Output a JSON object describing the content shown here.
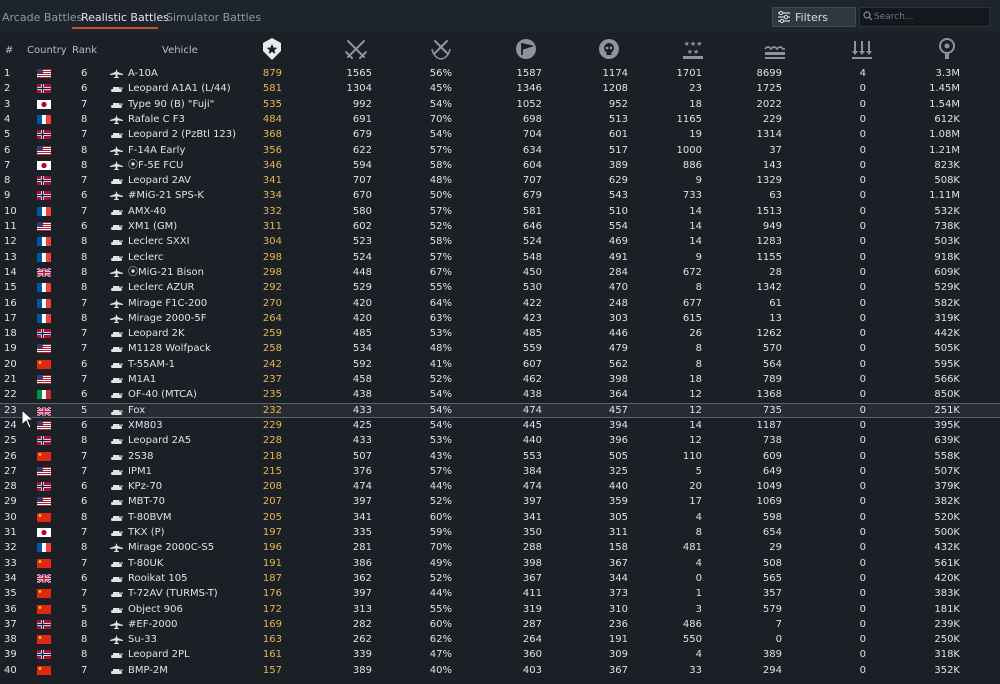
{
  "tabs": [
    {
      "label": "Arcade Battles",
      "active": false
    },
    {
      "label": "Realistic Battles",
      "active": true
    },
    {
      "label": "Simulator Battles",
      "active": false
    }
  ],
  "filters": {
    "label": "Filters",
    "icon": "sliders-icon"
  },
  "search": {
    "placeholder": "Search...",
    "value": ""
  },
  "columns": {
    "num": "#",
    "country": "Country",
    "rank": "Rank",
    "vehicle": "Vehicle",
    "icons": [
      "star-shield-icon",
      "crossed-swords-icon",
      "crossed-swords-laurel-icon",
      "flag-icon",
      "skull-icon",
      "air-kills-icon",
      "ground-kills-icon",
      "naval-kills-icon",
      "research-points-icon"
    ]
  },
  "colors": {
    "accent": "#c8502c",
    "score": "#e6b84e",
    "background": "#1b2026"
  },
  "rows": [
    {
      "n": "1",
      "country": "usa",
      "rank": "6",
      "type": "jet",
      "name": "A-10A",
      "score": "879",
      "played": "1565",
      "wr": "56%",
      "exp": "1587",
      "kills": "1174",
      "air": "1701",
      "ground": "8699",
      "naval": "4",
      "rp": "3.3M"
    },
    {
      "n": "2",
      "country": "norway",
      "rank": "6",
      "type": "tank",
      "name": "Leopard A1A1 (L/44)",
      "score": "581",
      "played": "1304",
      "wr": "45%",
      "exp": "1346",
      "kills": "1208",
      "air": "23",
      "ground": "1725",
      "naval": "0",
      "rp": "1.45M"
    },
    {
      "n": "3",
      "country": "japan",
      "rank": "7",
      "type": "tank",
      "name": "Type 90 (B) \"Fuji\"",
      "score": "535",
      "played": "992",
      "wr": "54%",
      "exp": "1052",
      "kills": "952",
      "air": "18",
      "ground": "2022",
      "naval": "0",
      "rp": "1.54M"
    },
    {
      "n": "4",
      "country": "france",
      "rank": "8",
      "type": "jet",
      "name": "Rafale C F3",
      "score": "484",
      "played": "691",
      "wr": "70%",
      "exp": "698",
      "kills": "513",
      "air": "1165",
      "ground": "229",
      "naval": "0",
      "rp": "612K"
    },
    {
      "n": "5",
      "country": "norway",
      "rank": "7",
      "type": "tank",
      "name": "Leopard 2 (PzBtl 123)",
      "score": "368",
      "played": "679",
      "wr": "54%",
      "exp": "704",
      "kills": "601",
      "air": "19",
      "ground": "1314",
      "naval": "0",
      "rp": "1.08M"
    },
    {
      "n": "6",
      "country": "usa",
      "rank": "8",
      "type": "jet",
      "name": "F-14A Early",
      "score": "356",
      "played": "622",
      "wr": "57%",
      "exp": "634",
      "kills": "517",
      "air": "1000",
      "ground": "37",
      "naval": "0",
      "rp": "1.21M"
    },
    {
      "n": "7",
      "country": "japan",
      "rank": "8",
      "type": "jet",
      "name": "⦿F-5E FCU",
      "score": "346",
      "played": "594",
      "wr": "58%",
      "exp": "604",
      "kills": "389",
      "air": "886",
      "ground": "143",
      "naval": "0",
      "rp": "823K"
    },
    {
      "n": "8",
      "country": "norway",
      "rank": "7",
      "type": "tank",
      "name": "Leopard 2AV",
      "score": "341",
      "played": "707",
      "wr": "48%",
      "exp": "707",
      "kills": "629",
      "air": "9",
      "ground": "1329",
      "naval": "0",
      "rp": "508K"
    },
    {
      "n": "9",
      "country": "norway",
      "rank": "6",
      "type": "jet",
      "name": "#MiG-21 SPS-K",
      "score": "334",
      "played": "670",
      "wr": "50%",
      "exp": "679",
      "kills": "543",
      "air": "733",
      "ground": "63",
      "naval": "0",
      "rp": "1.11M"
    },
    {
      "n": "10",
      "country": "france",
      "rank": "7",
      "type": "tank",
      "name": "AMX-40",
      "score": "332",
      "played": "580",
      "wr": "57%",
      "exp": "581",
      "kills": "510",
      "air": "14",
      "ground": "1513",
      "naval": "0",
      "rp": "532K"
    },
    {
      "n": "11",
      "country": "usa",
      "rank": "6",
      "type": "tank",
      "name": "XM1 (GM)",
      "score": "311",
      "played": "602",
      "wr": "52%",
      "exp": "646",
      "kills": "554",
      "air": "14",
      "ground": "949",
      "naval": "0",
      "rp": "738K"
    },
    {
      "n": "12",
      "country": "france",
      "rank": "8",
      "type": "tank",
      "name": "Leclerc SXXI",
      "score": "304",
      "played": "523",
      "wr": "58%",
      "exp": "524",
      "kills": "469",
      "air": "14",
      "ground": "1283",
      "naval": "0",
      "rp": "503K"
    },
    {
      "n": "13",
      "country": "france",
      "rank": "8",
      "type": "tank",
      "name": "Leclerc",
      "score": "298",
      "played": "524",
      "wr": "57%",
      "exp": "548",
      "kills": "491",
      "air": "9",
      "ground": "1155",
      "naval": "0",
      "rp": "918K"
    },
    {
      "n": "14",
      "country": "uk",
      "rank": "8",
      "type": "jet",
      "name": "⦿MiG-21 Bison",
      "score": "298",
      "played": "448",
      "wr": "67%",
      "exp": "450",
      "kills": "284",
      "air": "672",
      "ground": "28",
      "naval": "0",
      "rp": "609K"
    },
    {
      "n": "15",
      "country": "france",
      "rank": "8",
      "type": "tank",
      "name": "Leclerc AZUR",
      "score": "292",
      "played": "529",
      "wr": "55%",
      "exp": "530",
      "kills": "470",
      "air": "8",
      "ground": "1342",
      "naval": "0",
      "rp": "529K"
    },
    {
      "n": "16",
      "country": "france",
      "rank": "7",
      "type": "jet",
      "name": "Mirage F1C-200",
      "score": "270",
      "played": "420",
      "wr": "64%",
      "exp": "422",
      "kills": "248",
      "air": "677",
      "ground": "61",
      "naval": "0",
      "rp": "582K"
    },
    {
      "n": "17",
      "country": "france",
      "rank": "8",
      "type": "jet",
      "name": "Mirage 2000-5F",
      "score": "264",
      "played": "420",
      "wr": "63%",
      "exp": "423",
      "kills": "303",
      "air": "615",
      "ground": "13",
      "naval": "0",
      "rp": "319K"
    },
    {
      "n": "18",
      "country": "norway",
      "rank": "7",
      "type": "tank",
      "name": "Leopard 2K",
      "score": "259",
      "played": "485",
      "wr": "53%",
      "exp": "485",
      "kills": "446",
      "air": "26",
      "ground": "1262",
      "naval": "0",
      "rp": "442K"
    },
    {
      "n": "19",
      "country": "usa",
      "rank": "7",
      "type": "tank",
      "name": "M1128 Wolfpack",
      "score": "258",
      "played": "534",
      "wr": "48%",
      "exp": "559",
      "kills": "479",
      "air": "8",
      "ground": "570",
      "naval": "0",
      "rp": "505K"
    },
    {
      "n": "20",
      "country": "china",
      "rank": "6",
      "type": "tank",
      "name": "T-55AM-1",
      "score": "242",
      "played": "592",
      "wr": "41%",
      "exp": "607",
      "kills": "562",
      "air": "8",
      "ground": "564",
      "naval": "0",
      "rp": "595K"
    },
    {
      "n": "21",
      "country": "usa",
      "rank": "7",
      "type": "tank",
      "name": "M1A1",
      "score": "237",
      "played": "458",
      "wr": "52%",
      "exp": "462",
      "kills": "398",
      "air": "18",
      "ground": "789",
      "naval": "0",
      "rp": "566K"
    },
    {
      "n": "22",
      "country": "italy",
      "rank": "6",
      "type": "tank",
      "name": "OF-40 (MTCA)",
      "score": "235",
      "played": "438",
      "wr": "54%",
      "exp": "438",
      "kills": "364",
      "air": "12",
      "ground": "1368",
      "naval": "0",
      "rp": "850K"
    },
    {
      "n": "23",
      "country": "uk",
      "rank": "5",
      "type": "tank",
      "name": "Fox",
      "score": "232",
      "played": "433",
      "wr": "54%",
      "exp": "474",
      "kills": "457",
      "air": "12",
      "ground": "735",
      "naval": "0",
      "rp": "251K",
      "selected": true
    },
    {
      "n": "24",
      "country": "usa",
      "rank": "6",
      "type": "tank",
      "name": "XM803",
      "score": "229",
      "played": "425",
      "wr": "54%",
      "exp": "445",
      "kills": "394",
      "air": "14",
      "ground": "1187",
      "naval": "0",
      "rp": "395K"
    },
    {
      "n": "25",
      "country": "norway",
      "rank": "8",
      "type": "tank",
      "name": "Leopard 2A5",
      "score": "228",
      "played": "433",
      "wr": "53%",
      "exp": "440",
      "kills": "396",
      "air": "12",
      "ground": "738",
      "naval": "0",
      "rp": "639K"
    },
    {
      "n": "26",
      "country": "china",
      "rank": "7",
      "type": "tank",
      "name": "2S38",
      "score": "218",
      "played": "507",
      "wr": "43%",
      "exp": "553",
      "kills": "505",
      "air": "110",
      "ground": "609",
      "naval": "0",
      "rp": "558K"
    },
    {
      "n": "27",
      "country": "usa",
      "rank": "7",
      "type": "tank",
      "name": "IPM1",
      "score": "215",
      "played": "376",
      "wr": "57%",
      "exp": "384",
      "kills": "325",
      "air": "5",
      "ground": "649",
      "naval": "0",
      "rp": "507K"
    },
    {
      "n": "28",
      "country": "norway",
      "rank": "6",
      "type": "tank",
      "name": "KPz-70",
      "score": "208",
      "played": "474",
      "wr": "44%",
      "exp": "474",
      "kills": "440",
      "air": "20",
      "ground": "1049",
      "naval": "0",
      "rp": "379K"
    },
    {
      "n": "29",
      "country": "usa",
      "rank": "6",
      "type": "tank",
      "name": "MBT-70",
      "score": "207",
      "played": "397",
      "wr": "52%",
      "exp": "397",
      "kills": "359",
      "air": "17",
      "ground": "1069",
      "naval": "0",
      "rp": "382K"
    },
    {
      "n": "30",
      "country": "china",
      "rank": "8",
      "type": "tank",
      "name": "T-80BVM",
      "score": "205",
      "played": "341",
      "wr": "60%",
      "exp": "341",
      "kills": "305",
      "air": "4",
      "ground": "598",
      "naval": "0",
      "rp": "520K"
    },
    {
      "n": "31",
      "country": "japan",
      "rank": "7",
      "type": "tank",
      "name": "TKX (P)",
      "score": "197",
      "played": "335",
      "wr": "59%",
      "exp": "350",
      "kills": "311",
      "air": "8",
      "ground": "654",
      "naval": "0",
      "rp": "500K"
    },
    {
      "n": "32",
      "country": "france",
      "rank": "8",
      "type": "jet",
      "name": "Mirage 2000C-S5",
      "score": "196",
      "played": "281",
      "wr": "70%",
      "exp": "288",
      "kills": "158",
      "air": "481",
      "ground": "29",
      "naval": "0",
      "rp": "432K"
    },
    {
      "n": "33",
      "country": "china",
      "rank": "7",
      "type": "tank",
      "name": "T-80UK",
      "score": "191",
      "played": "386",
      "wr": "49%",
      "exp": "398",
      "kills": "367",
      "air": "4",
      "ground": "508",
      "naval": "0",
      "rp": "561K"
    },
    {
      "n": "34",
      "country": "uk",
      "rank": "6",
      "type": "tank",
      "name": "Rooikat 105",
      "score": "187",
      "played": "362",
      "wr": "52%",
      "exp": "367",
      "kills": "344",
      "air": "0",
      "ground": "565",
      "naval": "0",
      "rp": "420K"
    },
    {
      "n": "35",
      "country": "china",
      "rank": "7",
      "type": "tank",
      "name": "T-72AV (TURMS-T)",
      "score": "176",
      "played": "397",
      "wr": "44%",
      "exp": "411",
      "kills": "373",
      "air": "1",
      "ground": "357",
      "naval": "0",
      "rp": "383K"
    },
    {
      "n": "36",
      "country": "china",
      "rank": "5",
      "type": "tank",
      "name": "Object 906",
      "score": "172",
      "played": "313",
      "wr": "55%",
      "exp": "319",
      "kills": "310",
      "air": "3",
      "ground": "579",
      "naval": "0",
      "rp": "181K"
    },
    {
      "n": "37",
      "country": "norway",
      "rank": "8",
      "type": "jet",
      "name": "#EF-2000",
      "score": "169",
      "played": "282",
      "wr": "60%",
      "exp": "287",
      "kills": "236",
      "air": "486",
      "ground": "7",
      "naval": "0",
      "rp": "239K"
    },
    {
      "n": "38",
      "country": "china",
      "rank": "8",
      "type": "jet",
      "name": "Su-33",
      "score": "163",
      "played": "262",
      "wr": "62%",
      "exp": "264",
      "kills": "191",
      "air": "550",
      "ground": "0",
      "naval": "0",
      "rp": "250K"
    },
    {
      "n": "39",
      "country": "norway",
      "rank": "8",
      "type": "tank",
      "name": "Leopard 2PL",
      "score": "161",
      "played": "339",
      "wr": "47%",
      "exp": "360",
      "kills": "309",
      "air": "4",
      "ground": "389",
      "naval": "0",
      "rp": "318K"
    },
    {
      "n": "40",
      "country": "china",
      "rank": "7",
      "type": "tank",
      "name": "BMP-2M",
      "score": "157",
      "played": "389",
      "wr": "40%",
      "exp": "403",
      "kills": "367",
      "air": "33",
      "ground": "294",
      "naval": "0",
      "rp": "352K"
    }
  ]
}
